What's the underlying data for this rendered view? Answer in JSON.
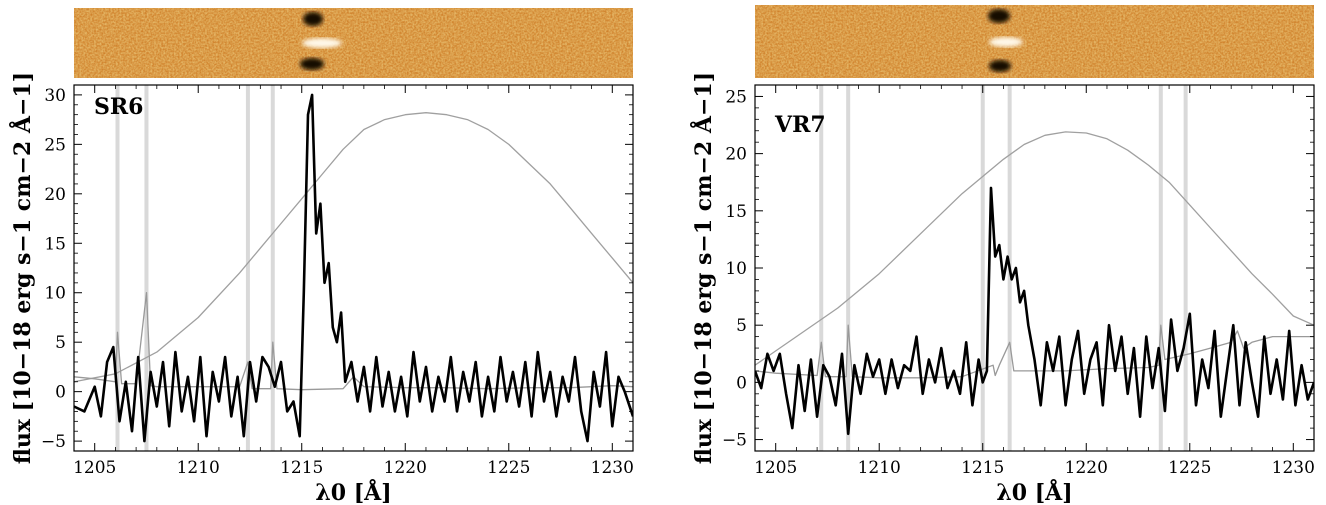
{
  "chart_data": [
    {
      "type": "line",
      "panel_label": "SR6",
      "xlabel": "λ0 [Å]",
      "ylabel": "flux [10−18 erg s−1 cm−2 Å−1]",
      "xlim": [
        1204,
        1231
      ],
      "ylim": [
        -6,
        31
      ],
      "xticks": [
        1205,
        1210,
        1215,
        1220,
        1225,
        1230
      ],
      "yticks": [
        -5,
        0,
        5,
        10,
        15,
        20,
        25,
        30
      ],
      "grid": false,
      "sky_line_bands": [
        1206.1,
        1207.5,
        1212.4,
        1213.6
      ],
      "series": [
        {
          "role": "spectrum",
          "color": "#000000",
          "x": [
            1204.0,
            1204.5,
            1205.0,
            1205.3,
            1205.6,
            1205.9,
            1206.2,
            1206.5,
            1206.8,
            1207.1,
            1207.4,
            1207.7,
            1208.0,
            1208.3,
            1208.6,
            1208.9,
            1209.2,
            1209.5,
            1209.8,
            1210.1,
            1210.4,
            1210.7,
            1211.0,
            1211.3,
            1211.6,
            1211.9,
            1212.2,
            1212.5,
            1212.8,
            1213.1,
            1213.4,
            1213.7,
            1214.0,
            1214.3,
            1214.6,
            1214.9,
            1215.1,
            1215.3,
            1215.5,
            1215.7,
            1215.9,
            1216.1,
            1216.3,
            1216.5,
            1216.7,
            1216.9,
            1217.1,
            1217.4,
            1217.7,
            1218.0,
            1218.3,
            1218.6,
            1218.9,
            1219.2,
            1219.5,
            1219.8,
            1220.1,
            1220.4,
            1220.7,
            1221.0,
            1221.3,
            1221.6,
            1221.9,
            1222.2,
            1222.5,
            1222.8,
            1223.1,
            1223.4,
            1223.7,
            1224.0,
            1224.3,
            1224.6,
            1224.9,
            1225.2,
            1225.5,
            1225.8,
            1226.1,
            1226.4,
            1226.7,
            1227.0,
            1227.3,
            1227.6,
            1227.9,
            1228.2,
            1228.5,
            1228.8,
            1229.1,
            1229.4,
            1229.7,
            1230.0,
            1230.3,
            1230.6,
            1231.0
          ],
          "y": [
            -1.5,
            -2.0,
            0.5,
            -2.5,
            3.0,
            4.5,
            -3.0,
            1.0,
            -4.0,
            3.5,
            -5.0,
            2.0,
            -1.5,
            3.0,
            -3.5,
            4.0,
            -2.0,
            1.5,
            -3.0,
            3.5,
            -4.5,
            2.0,
            -1.0,
            3.5,
            -2.5,
            1.5,
            -4.5,
            3.0,
            -1.0,
            3.5,
            2.5,
            0.5,
            3.0,
            -2.0,
            -1.0,
            -4.5,
            10.0,
            28.0,
            30.0,
            16.0,
            19.0,
            11.0,
            13.0,
            6.5,
            5.0,
            8.0,
            1.0,
            3.0,
            -1.0,
            2.5,
            -2.0,
            3.5,
            -1.5,
            2.0,
            -2.0,
            1.5,
            -2.5,
            4.0,
            -1.0,
            2.5,
            -2.0,
            1.5,
            -1.0,
            3.5,
            -2.0,
            2.0,
            -1.0,
            3.0,
            -2.5,
            1.5,
            -2.0,
            3.5,
            -1.0,
            2.0,
            -1.5,
            3.0,
            -2.5,
            4.0,
            -1.0,
            2.0,
            -2.5,
            1.5,
            -1.0,
            3.5,
            -2.0,
            -5.0,
            2.0,
            -1.5,
            4.0,
            -3.5,
            1.5,
            0.0,
            -2.5
          ]
        },
        {
          "role": "noise",
          "color": "#999999",
          "x": [
            1204,
            1205,
            1206,
            1206.1,
            1206.3,
            1207,
            1207.5,
            1207.7,
            1208,
            1210,
            1212,
            1212.4,
            1212.6,
            1213.5,
            1213.6,
            1213.8,
            1215,
            1217,
            1217.5,
            1218,
            1220,
            1222,
            1224,
            1226,
            1228,
            1230,
            1231
          ],
          "y": [
            1.5,
            1.3,
            1.0,
            6.0,
            0.8,
            0.8,
            10.0,
            0.6,
            0.5,
            0.5,
            0.5,
            3.0,
            0.3,
            0.3,
            5.0,
            0.3,
            0.2,
            0.3,
            1.5,
            0.5,
            0.4,
            0.4,
            0.3,
            0.4,
            0.4,
            0.6,
            0.5
          ]
        },
        {
          "role": "transmission",
          "color": "#a0a0a0",
          "x": [
            1204,
            1206,
            1208,
            1210,
            1212,
            1213,
            1214,
            1215,
            1216,
            1217,
            1218,
            1219,
            1220,
            1221,
            1222,
            1223,
            1224,
            1225,
            1226,
            1227,
            1228,
            1229,
            1230,
            1231
          ],
          "y": [
            1.0,
            1.8,
            4.0,
            7.5,
            12.0,
            14.5,
            17.0,
            19.5,
            22.0,
            24.5,
            26.5,
            27.5,
            28.0,
            28.2,
            28.0,
            27.5,
            26.5,
            25.0,
            23.0,
            21.0,
            18.5,
            16.0,
            13.5,
            11.0
          ]
        }
      ]
    },
    {
      "type": "line",
      "panel_label": "VR7",
      "xlabel": "λ0 [Å]",
      "ylabel": "flux [10−18 erg s−1 cm−2 Å−1]",
      "xlim": [
        1204,
        1231
      ],
      "ylim": [
        -6,
        26
      ],
      "xticks": [
        1205,
        1210,
        1215,
        1220,
        1225,
        1230
      ],
      "yticks": [
        -5,
        0,
        5,
        10,
        15,
        20,
        25
      ],
      "grid": false,
      "sky_line_bands": [
        1207.2,
        1208.5,
        1215.0,
        1216.3,
        1223.6,
        1224.8
      ],
      "series": [
        {
          "role": "spectrum",
          "color": "#000000",
          "x": [
            1204.0,
            1204.3,
            1204.6,
            1204.9,
            1205.2,
            1205.5,
            1205.8,
            1206.1,
            1206.4,
            1206.7,
            1207.0,
            1207.3,
            1207.6,
            1207.9,
            1208.2,
            1208.5,
            1208.8,
            1209.1,
            1209.4,
            1209.7,
            1210.0,
            1210.3,
            1210.6,
            1210.9,
            1211.2,
            1211.5,
            1211.8,
            1212.1,
            1212.4,
            1212.7,
            1213.0,
            1213.3,
            1213.6,
            1213.9,
            1214.2,
            1214.5,
            1214.8,
            1215.0,
            1215.2,
            1215.4,
            1215.6,
            1215.8,
            1216.0,
            1216.2,
            1216.4,
            1216.6,
            1216.8,
            1217.0,
            1217.2,
            1217.5,
            1217.8,
            1218.1,
            1218.4,
            1218.7,
            1219.0,
            1219.3,
            1219.6,
            1219.9,
            1220.2,
            1220.5,
            1220.8,
            1221.1,
            1221.4,
            1221.7,
            1222.0,
            1222.3,
            1222.6,
            1222.9,
            1223.2,
            1223.5,
            1223.8,
            1224.1,
            1224.4,
            1224.7,
            1225.0,
            1225.3,
            1225.6,
            1225.9,
            1226.2,
            1226.5,
            1226.8,
            1227.1,
            1227.4,
            1227.7,
            1228.0,
            1228.3,
            1228.6,
            1228.9,
            1229.2,
            1229.5,
            1229.8,
            1230.1,
            1230.4,
            1230.7,
            1231.0
          ],
          "y": [
            1.0,
            -0.5,
            2.5,
            1.0,
            2.5,
            -1.0,
            -4.0,
            1.5,
            -2.5,
            2.0,
            -3.0,
            1.5,
            0.5,
            -2.0,
            2.5,
            -4.5,
            1.5,
            -1.0,
            2.5,
            0.5,
            2.0,
            -1.0,
            2.0,
            -0.5,
            1.5,
            1.0,
            4.0,
            -1.0,
            2.0,
            0.0,
            3.0,
            -0.5,
            1.0,
            -1.0,
            3.5,
            -2.0,
            2.0,
            0.0,
            1.0,
            17.0,
            11.0,
            12.0,
            9.0,
            11.0,
            9.0,
            10.0,
            7.0,
            8.0,
            5.0,
            2.0,
            -2.0,
            3.5,
            1.0,
            4.0,
            -2.0,
            2.0,
            4.5,
            -1.0,
            2.0,
            3.5,
            -2.0,
            5.0,
            1.0,
            4.0,
            -1.0,
            3.0,
            -3.0,
            4.0,
            -0.5,
            3.0,
            -2.5,
            5.5,
            1.0,
            3.0,
            6.0,
            -2.0,
            2.0,
            -0.5,
            4.5,
            -3.0,
            1.0,
            5.0,
            -2.0,
            3.5,
            0.0,
            -3.0,
            4.0,
            -1.0,
            2.0,
            -1.5,
            4.5,
            -2.0,
            1.5,
            -1.5,
            0.0
          ]
        },
        {
          "role": "noise",
          "color": "#999999",
          "x": [
            1204,
            1205,
            1207,
            1207.2,
            1207.4,
            1208.4,
            1208.5,
            1208.7,
            1210,
            1212,
            1214,
            1215.5,
            1215.6,
            1215.8,
            1216.3,
            1216.5,
            1217,
            1219,
            1221,
            1223,
            1223.5,
            1223.6,
            1223.8,
            1225,
            1226,
            1227,
            1227.3,
            1227.6,
            1228,
            1229,
            1230,
            1231
          ],
          "y": [
            1.0,
            0.8,
            0.6,
            3.5,
            0.5,
            0.5,
            5.0,
            0.5,
            0.4,
            0.4,
            0.5,
            1.5,
            0.6,
            1.5,
            3.5,
            1.0,
            1.0,
            1.0,
            1.2,
            1.3,
            1.5,
            5.0,
            2.0,
            2.5,
            3.0,
            3.5,
            4.5,
            3.0,
            3.5,
            4.0,
            4.0,
            4.0
          ]
        },
        {
          "role": "transmission",
          "color": "#a0a0a0",
          "x": [
            1204,
            1206,
            1208,
            1210,
            1212,
            1214,
            1215,
            1216,
            1217,
            1218,
            1219,
            1220,
            1221,
            1222,
            1223,
            1224,
            1225,
            1226,
            1227,
            1228,
            1229,
            1230,
            1231
          ],
          "y": [
            1.5,
            4.0,
            6.5,
            9.5,
            13.0,
            16.5,
            18.0,
            19.5,
            20.8,
            21.6,
            21.9,
            21.8,
            21.3,
            20.3,
            19.0,
            17.5,
            15.5,
            13.5,
            11.5,
            9.5,
            7.7,
            5.8,
            5.0
          ]
        }
      ]
    }
  ]
}
